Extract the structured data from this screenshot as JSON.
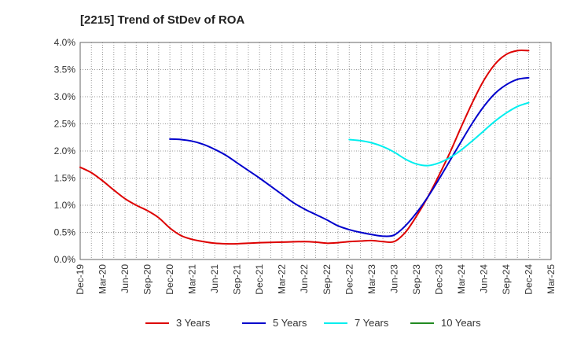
{
  "chart_data": {
    "type": "line",
    "title": "[2215]  Trend of StDev of ROA",
    "xlabel": "",
    "ylabel": "",
    "ylim": [
      0,
      4.0
    ],
    "y_ticks": [
      "0.0%",
      "0.5%",
      "1.0%",
      "1.5%",
      "2.0%",
      "2.5%",
      "3.0%",
      "3.5%",
      "4.0%"
    ],
    "grid": true,
    "legend_position": "bottom",
    "x_ticks": [
      "Dec-19",
      "Mar-20",
      "Jun-20",
      "Sep-20",
      "Dec-20",
      "Mar-21",
      "Jun-21",
      "Sep-21",
      "Dec-21",
      "Mar-22",
      "Jun-22",
      "Sep-22",
      "Dec-22",
      "Mar-23",
      "Jun-23",
      "Sep-23",
      "Dec-23",
      "Mar-24",
      "Jun-24",
      "Sep-24",
      "Dec-24",
      "Mar-25"
    ],
    "series": [
      {
        "name": "3 Years",
        "color": "#dd0000",
        "points": [
          [
            0,
            1.7
          ],
          [
            0.5,
            1.6
          ],
          [
            1,
            1.45
          ],
          [
            1.5,
            1.28
          ],
          [
            2,
            1.12
          ],
          [
            2.5,
            1.0
          ],
          [
            3,
            0.9
          ],
          [
            3.5,
            0.77
          ],
          [
            4,
            0.58
          ],
          [
            4.5,
            0.44
          ],
          [
            5,
            0.37
          ],
          [
            5.5,
            0.33
          ],
          [
            6,
            0.3
          ],
          [
            6.5,
            0.29
          ],
          [
            7,
            0.29
          ],
          [
            7.5,
            0.3
          ],
          [
            8,
            0.31
          ],
          [
            9,
            0.32
          ],
          [
            10,
            0.33
          ],
          [
            10.5,
            0.32
          ],
          [
            11,
            0.3
          ],
          [
            11.5,
            0.31
          ],
          [
            12,
            0.33
          ],
          [
            12.5,
            0.34
          ],
          [
            13,
            0.35
          ],
          [
            13.5,
            0.33
          ],
          [
            14,
            0.33
          ],
          [
            14.5,
            0.5
          ],
          [
            15,
            0.8
          ],
          [
            15.5,
            1.15
          ],
          [
            16,
            1.55
          ],
          [
            16.5,
            1.98
          ],
          [
            17,
            2.45
          ],
          [
            17.5,
            2.9
          ],
          [
            18,
            3.3
          ],
          [
            18.5,
            3.6
          ],
          [
            19,
            3.78
          ],
          [
            19.5,
            3.85
          ],
          [
            20,
            3.85
          ]
        ]
      },
      {
        "name": "5 Years",
        "color": "#0000cc",
        "points": [
          [
            4,
            2.22
          ],
          [
            4.5,
            2.21
          ],
          [
            5,
            2.18
          ],
          [
            5.5,
            2.12
          ],
          [
            6,
            2.03
          ],
          [
            6.5,
            1.92
          ],
          [
            7,
            1.78
          ],
          [
            7.5,
            1.64
          ],
          [
            8,
            1.5
          ],
          [
            8.5,
            1.35
          ],
          [
            9,
            1.2
          ],
          [
            9.5,
            1.05
          ],
          [
            10,
            0.93
          ],
          [
            10.5,
            0.83
          ],
          [
            11,
            0.73
          ],
          [
            11.5,
            0.62
          ],
          [
            12,
            0.55
          ],
          [
            12.5,
            0.5
          ],
          [
            13,
            0.46
          ],
          [
            13.5,
            0.43
          ],
          [
            14,
            0.45
          ],
          [
            14.5,
            0.62
          ],
          [
            15,
            0.86
          ],
          [
            15.5,
            1.15
          ],
          [
            16,
            1.48
          ],
          [
            16.5,
            1.83
          ],
          [
            17,
            2.18
          ],
          [
            17.5,
            2.52
          ],
          [
            18,
            2.82
          ],
          [
            18.5,
            3.06
          ],
          [
            19,
            3.22
          ],
          [
            19.5,
            3.32
          ],
          [
            20,
            3.35
          ]
        ]
      },
      {
        "name": "7 Years",
        "color": "#00eeee",
        "points": [
          [
            12,
            2.21
          ],
          [
            12.5,
            2.19
          ],
          [
            13,
            2.15
          ],
          [
            13.5,
            2.08
          ],
          [
            14,
            1.98
          ],
          [
            14.5,
            1.85
          ],
          [
            15,
            1.76
          ],
          [
            15.5,
            1.73
          ],
          [
            16,
            1.78
          ],
          [
            16.5,
            1.88
          ],
          [
            17,
            2.02
          ],
          [
            17.5,
            2.19
          ],
          [
            18,
            2.37
          ],
          [
            18.5,
            2.55
          ],
          [
            19,
            2.7
          ],
          [
            19.5,
            2.82
          ],
          [
            20,
            2.89
          ]
        ]
      },
      {
        "name": "10 Years",
        "color": "#228b22",
        "points": []
      }
    ]
  }
}
